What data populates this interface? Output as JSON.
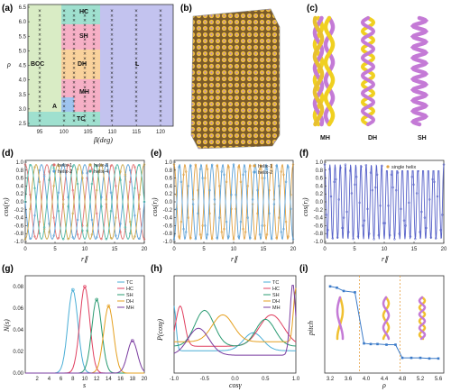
{
  "panel_labels": {
    "a": "(a)",
    "b": "(b)",
    "c": "(c)",
    "d": "(d)",
    "e": "(e)",
    "f": "(f)",
    "g": "(g)",
    "h": "(h)",
    "i": "(i)"
  },
  "panel_a": {
    "xlabel": "β(deg)",
    "ylabel": "ρ",
    "xticks": [
      "95",
      "100",
      "105",
      "110",
      "115",
      "120"
    ],
    "yticks": [
      "2.5",
      "3.0",
      "3.5",
      "4.0",
      "4.5",
      "5.0",
      "5.5",
      "6.0",
      "6.5"
    ],
    "phases": {
      "hc": "HC",
      "sh": "SH",
      "bcc": "BCC",
      "dh": "DH",
      "l": "L",
      "mh": "MH",
      "ac": "A",
      "tc": "TC"
    },
    "colors": {
      "bcc": "#d9ecc5",
      "hc": "#9fe0cf",
      "sh": "#f6b0c6",
      "dh": "#f9d29c",
      "l": "#c3c3ef",
      "mh": "#f4a9cf",
      "ac": "#9fc4ef",
      "tc": "#9fe0cf"
    }
  },
  "panel_c": {
    "labels": [
      "MH",
      "DH",
      "SH"
    ]
  },
  "panel_d": {
    "xlabel": "r∥",
    "ylabel": "cos(rⱼ)",
    "legend": [
      "helix-1",
      "helix-2",
      "helix-3",
      "helix-4"
    ],
    "series_colors": [
      "#e07070",
      "#5aa0d6",
      "#c9a64a",
      "#4bb5a2"
    ],
    "xticks": [
      "0",
      "5",
      "10",
      "15",
      "20"
    ],
    "yticks": [
      "-1.0",
      "-0.8",
      "-0.6",
      "-0.4",
      "-0.2",
      "0.0",
      "0.2",
      "0.4",
      "0.6",
      "0.8",
      "1.0"
    ]
  },
  "panel_e": {
    "xlabel": "r∥",
    "ylabel": "cos(rⱼ)",
    "legend": [
      "helix-1",
      "helix-2"
    ],
    "series_colors": [
      "#e0a040",
      "#5aa0d6"
    ],
    "xticks": [
      "0",
      "5",
      "10",
      "15",
      "20"
    ],
    "yticks": [
      "-1.0",
      "-0.8",
      "-0.6",
      "-0.4",
      "-0.2",
      "0.0",
      "0.2",
      "0.4",
      "0.6",
      "0.8",
      "1.0"
    ]
  },
  "panel_f": {
    "xlabel": "r∥",
    "ylabel": "cos(rⱼ)",
    "legend": [
      "single helix"
    ],
    "series_colors": [
      "#5560c8"
    ],
    "xticks": [
      "0",
      "5",
      "10",
      "15",
      "20"
    ],
    "yticks": [
      "-1.0",
      "-0.8",
      "-0.6",
      "-0.4",
      "-0.2",
      "0.0",
      "0.2",
      "0.4",
      "0.6",
      "0.8",
      "1.0"
    ]
  },
  "panel_g": {
    "xlabel": "s",
    "ylabel": "N(s)",
    "legend": [
      "TC",
      "HC",
      "SH",
      "DH",
      "MH"
    ],
    "series_colors": [
      "#4aaed6",
      "#e04060",
      "#2a9b72",
      "#e5a020",
      "#7a3ca0"
    ],
    "xticks": [
      "2",
      "4",
      "6",
      "8",
      "10",
      "12",
      "14",
      "16",
      "18",
      "20"
    ],
    "yticks": [
      "0.00",
      "0.02",
      "0.04",
      "0.06",
      "0.08"
    ]
  },
  "panel_h": {
    "xlabel": "cosγ",
    "ylabel": "P(cosγ)",
    "legend": [
      "TC",
      "HC",
      "SH",
      "DH",
      "MH"
    ],
    "series_colors": [
      "#4aaed6",
      "#e04060",
      "#2a9b72",
      "#e5a020",
      "#7a3ca0"
    ],
    "xticks": [
      "-1.0",
      "-0.5",
      "0.0",
      "0.5",
      "1.0"
    ]
  },
  "panel_i": {
    "xlabel": "ρ",
    "ylabel": "pitch",
    "xticks": [
      "3.2",
      "3.6",
      "4.0",
      "4.4",
      "4.8",
      "5.2",
      "5.6"
    ],
    "series_color": "#3a7ac8",
    "divider_color": "#e6a040"
  },
  "chart_data": [
    {
      "type": "line",
      "panel": "g",
      "xlabel": "s",
      "ylabel": "N(s)",
      "xlim": [
        0,
        20
      ],
      "ylim": [
        0,
        0.09
      ],
      "series": [
        {
          "name": "TC",
          "peak_x": 8,
          "peak_y": 0.077
        },
        {
          "name": "HC",
          "peak_x": 10,
          "peak_y": 0.08
        },
        {
          "name": "SH",
          "peak_x": 12,
          "peak_y": 0.068
        },
        {
          "name": "DH",
          "peak_x": 14,
          "peak_y": 0.062
        },
        {
          "name": "MH",
          "peak_x": 18,
          "peak_y": 0.03
        }
      ]
    },
    {
      "type": "line",
      "panel": "i",
      "xlabel": "ρ",
      "ylabel": "pitch",
      "x": [
        3.2,
        3.35,
        3.5,
        3.75,
        3.95,
        4.1,
        4.25,
        4.45,
        4.65,
        4.8,
        5.0,
        5.2,
        5.4,
        5.6
      ],
      "y": [
        6.2,
        6.1,
        5.85,
        5.75,
        1.85,
        1.8,
        1.8,
        1.75,
        1.75,
        0.75,
        0.75,
        0.75,
        0.7,
        0.7
      ]
    }
  ]
}
